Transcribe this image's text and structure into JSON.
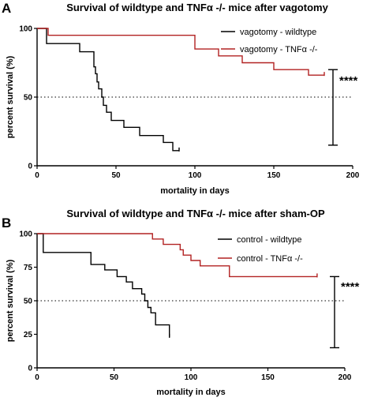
{
  "chart_data": [
    {
      "panel": "A",
      "type": "line",
      "step": true,
      "title": "Survival of wildtype and TNFα -/- mice after vagotomy",
      "xlabel": "mortality in days",
      "ylabel": "percent survival (%)",
      "xlim": [
        0,
        200
      ],
      "ylim": [
        0,
        100
      ],
      "xticks": [
        "0",
        "50",
        "100",
        "150",
        "200"
      ],
      "yticks": [
        "0",
        "50",
        "100"
      ],
      "reference_line_y": 50,
      "legend_position": "top-right",
      "series": [
        {
          "name": "vagotomy - wildtype",
          "color": "#000000",
          "x": [
            0,
            6,
            10,
            27,
            36,
            37,
            38,
            39,
            41,
            42,
            44,
            47,
            55,
            61,
            65,
            72,
            75,
            80,
            86,
            90
          ],
          "y": [
            100,
            89,
            89,
            83,
            72,
            67,
            61,
            56,
            50,
            44,
            39,
            33,
            28,
            28,
            22,
            22,
            22,
            17,
            11,
            11
          ]
        },
        {
          "name": "vagotomy - TNFα -/-",
          "color": "#b22222",
          "x": [
            0,
            7,
            97,
            100,
            115,
            130,
            150,
            172,
            182
          ],
          "y": [
            100,
            95,
            95,
            85,
            80,
            75,
            70,
            66,
            66
          ]
        }
      ],
      "significance": {
        "label": "****",
        "y_top": 70,
        "y_bottom": 15
      }
    },
    {
      "panel": "B",
      "type": "line",
      "step": true,
      "title": "Survival of wildtype and TNFα -/- mice after sham-OP",
      "xlabel": "mortality in days",
      "ylabel": "percent survival (%)",
      "xlim": [
        0,
        200
      ],
      "ylim": [
        0,
        100
      ],
      "xticks": [
        "0",
        "50",
        "100",
        "150",
        "200"
      ],
      "yticks": [
        "0",
        "25",
        "50",
        "75",
        "100"
      ],
      "reference_line_y": 50,
      "legend_position": "top-right",
      "series": [
        {
          "name": "control - wildtype",
          "color": "#000000",
          "x": [
            0,
            4,
            35,
            44,
            52,
            58,
            62,
            68,
            70,
            72,
            74,
            77,
            86
          ],
          "y": [
            100,
            86,
            77,
            73,
            68,
            64,
            59,
            55,
            50,
            45,
            41,
            32,
            23
          ]
        },
        {
          "name": "control - TNFα -/-",
          "color": "#b22222",
          "x": [
            0,
            75,
            82,
            93,
            95,
            100,
            106,
            125,
            182
          ],
          "y": [
            100,
            96,
            92,
            88,
            84,
            80,
            76,
            68,
            68
          ]
        }
      ],
      "significance": {
        "label": "****",
        "y_top": 68,
        "y_bottom": 15
      }
    }
  ]
}
